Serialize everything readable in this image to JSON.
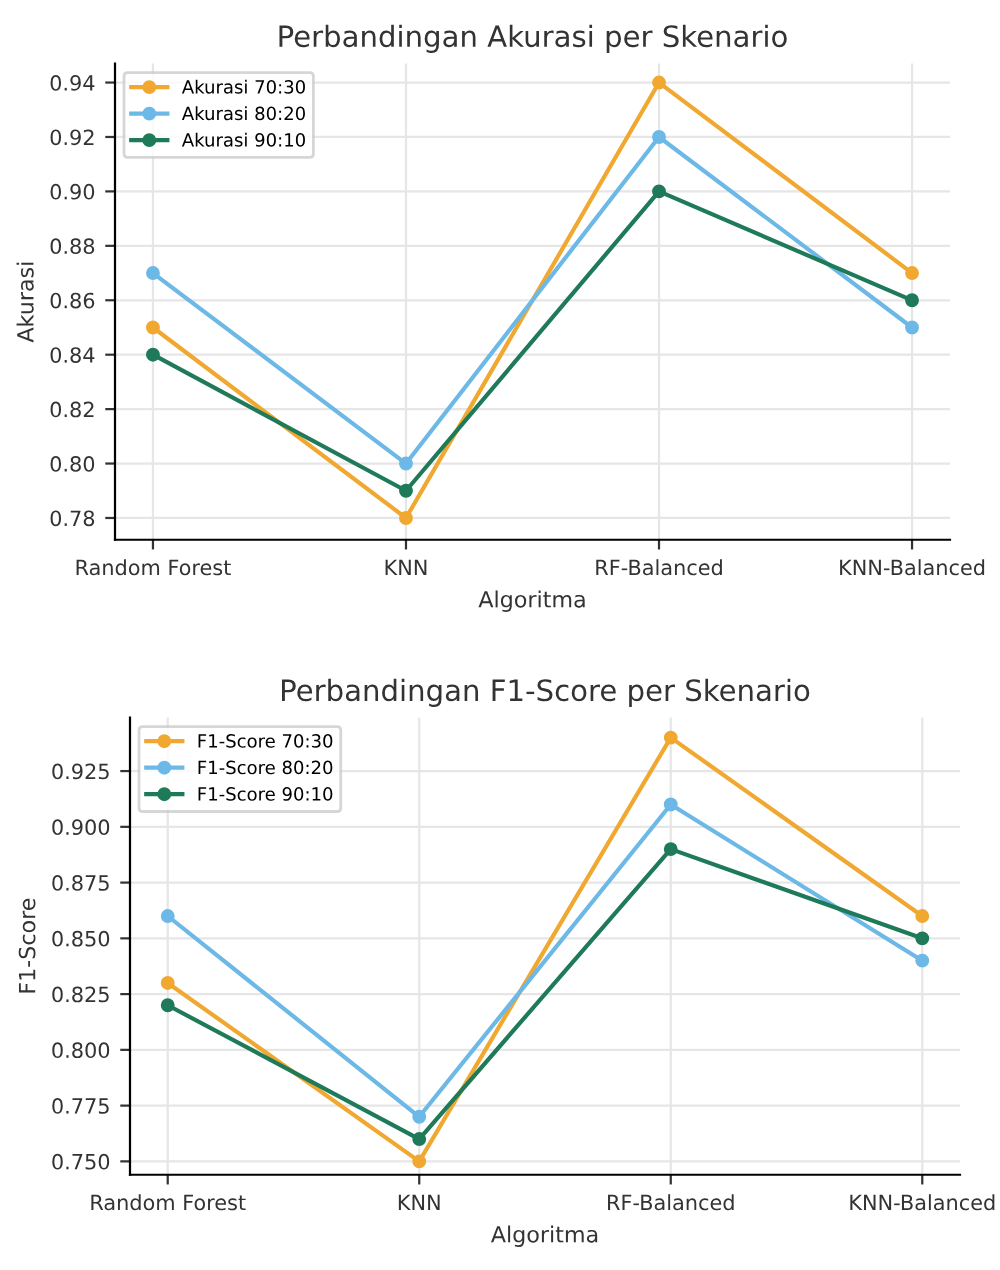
{
  "chart_data": [
    {
      "type": "line",
      "title": "Perbandingan Akurasi per Skenario",
      "xlabel": "Algoritma",
      "ylabel": "Akurasi",
      "categories": [
        "Random Forest",
        "KNN",
        "RF-Balanced",
        "KNN-Balanced"
      ],
      "series": [
        {
          "name": "Akurasi 70:30",
          "color": "#f0a830",
          "values": [
            0.85,
            0.78,
            0.94,
            0.87
          ]
        },
        {
          "name": "Akurasi 80:20",
          "color": "#6cb8e6",
          "values": [
            0.87,
            0.8,
            0.92,
            0.85
          ]
        },
        {
          "name": "Akurasi 90:10",
          "color": "#1f7a5a",
          "values": [
            0.84,
            0.79,
            0.9,
            0.86
          ]
        }
      ],
      "ylim": [
        0.772,
        0.947
      ],
      "yticks": [
        0.78,
        {
          "value": 0.8,
          "label": "0.80"
        },
        0.82,
        0.84,
        0.86,
        0.88,
        {
          "value": 0.9,
          "label": "0.90"
        },
        0.92,
        0.94
      ],
      "grid": true,
      "legend": "top left",
      "marker": "circle",
      "line_style": "solid"
    },
    {
      "type": "line",
      "title": "Perbandingan F1-Score per Skenario",
      "xlabel": "Algoritma",
      "ylabel": "F1-Score",
      "categories": [
        "Random Forest",
        "KNN",
        "RF-Balanced",
        "KNN-Balanced"
      ],
      "series": [
        {
          "name": "F1-Score 70:30",
          "color": "#f0a830",
          "values": [
            0.83,
            0.75,
            0.94,
            0.86
          ]
        },
        {
          "name": "F1-Score 80:20",
          "color": "#6cb8e6",
          "values": [
            0.86,
            0.77,
            0.91,
            0.84
          ]
        },
        {
          "name": "F1-Score 90:10",
          "color": "#1f7a5a",
          "values": [
            0.82,
            0.76,
            0.89,
            0.85
          ]
        }
      ],
      "ylim": [
        0.744,
        0.949
      ],
      "yticks": [
        {
          "value": 0.75,
          "label": "0.750"
        },
        0.775,
        {
          "value": 0.8,
          "label": "0.800"
        },
        0.825,
        {
          "value": 0.85,
          "label": "0.850"
        },
        0.875,
        {
          "value": 0.9,
          "label": "0.900"
        },
        0.925
      ],
      "grid": true,
      "legend": "top left",
      "marker": "circle",
      "line_style": "solid"
    }
  ]
}
